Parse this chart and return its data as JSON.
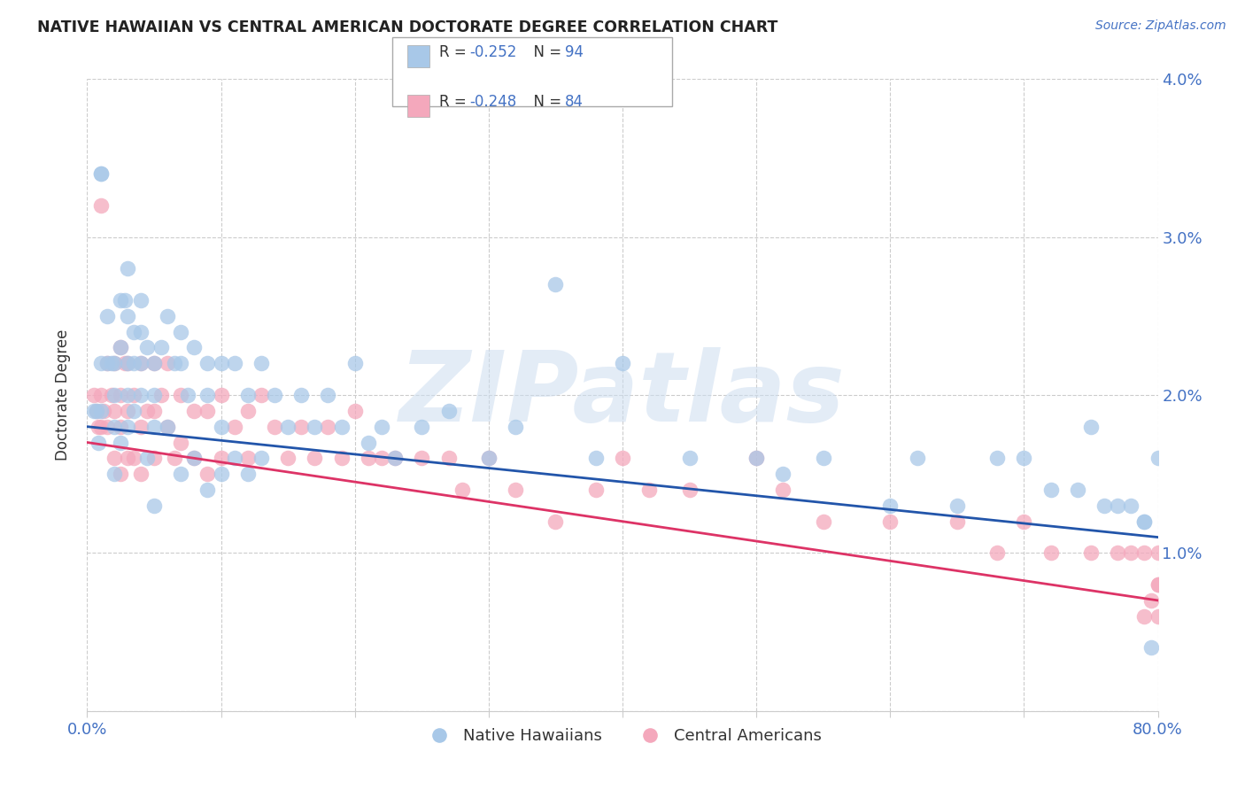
{
  "title": "NATIVE HAWAIIAN VS CENTRAL AMERICAN DOCTORATE DEGREE CORRELATION CHART",
  "source": "Source: ZipAtlas.com",
  "ylabel": "Doctorate Degree",
  "xlabel": "",
  "xlim": [
    0.0,
    0.8
  ],
  "ylim": [
    0.0,
    0.04
  ],
  "xticks": [
    0.0,
    0.1,
    0.2,
    0.3,
    0.4,
    0.5,
    0.6,
    0.7,
    0.8
  ],
  "xticklabels": [
    "0.0%",
    "",
    "",
    "",
    "",
    "",
    "",
    "",
    "80.0%"
  ],
  "yticks": [
    0.0,
    0.01,
    0.02,
    0.03,
    0.04
  ],
  "yticklabels": [
    "",
    "1.0%",
    "2.0%",
    "3.0%",
    "4.0%"
  ],
  "right_ytick_color": "#4472c4",
  "legend_blue_label_prefix": "R = ",
  "legend_blue_r_val": "-0.252",
  "legend_blue_n_label": "   N = ",
  "legend_blue_n_val": "94",
  "legend_pink_label_prefix": "R = ",
  "legend_pink_r_val": "-0.248",
  "legend_pink_n_label": "   N = ",
  "legend_pink_n_val": "84",
  "legend_sublabel_blue": "Native Hawaiians",
  "legend_sublabel_pink": "Central Americans",
  "blue_color": "#a8c8e8",
  "pink_color": "#f4a8bc",
  "trend_blue": "#2255aa",
  "trend_pink": "#dd3366",
  "grid_color": "#cccccc",
  "background_color": "#ffffff",
  "watermark": "ZIPatlas",
  "blue_trend_start": 0.018,
  "blue_trend_end": 0.011,
  "pink_trend_start": 0.017,
  "pink_trend_end": 0.007,
  "blue_x": [
    0.005,
    0.007,
    0.008,
    0.01,
    0.01,
    0.01,
    0.01,
    0.015,
    0.015,
    0.018,
    0.02,
    0.02,
    0.02,
    0.02,
    0.025,
    0.025,
    0.025,
    0.028,
    0.03,
    0.03,
    0.03,
    0.03,
    0.03,
    0.035,
    0.035,
    0.035,
    0.04,
    0.04,
    0.04,
    0.04,
    0.045,
    0.045,
    0.05,
    0.05,
    0.05,
    0.05,
    0.055,
    0.06,
    0.06,
    0.065,
    0.07,
    0.07,
    0.07,
    0.075,
    0.08,
    0.08,
    0.09,
    0.09,
    0.09,
    0.1,
    0.1,
    0.1,
    0.11,
    0.11,
    0.12,
    0.12,
    0.13,
    0.13,
    0.14,
    0.15,
    0.16,
    0.17,
    0.18,
    0.19,
    0.2,
    0.21,
    0.22,
    0.23,
    0.25,
    0.27,
    0.3,
    0.32,
    0.35,
    0.38,
    0.4,
    0.45,
    0.5,
    0.52,
    0.55,
    0.6,
    0.62,
    0.65,
    0.68,
    0.7,
    0.72,
    0.74,
    0.75,
    0.76,
    0.77,
    0.78,
    0.79,
    0.79,
    0.795,
    0.8
  ],
  "blue_y": [
    0.019,
    0.019,
    0.017,
    0.034,
    0.034,
    0.022,
    0.019,
    0.025,
    0.022,
    0.022,
    0.022,
    0.02,
    0.018,
    0.015,
    0.026,
    0.023,
    0.017,
    0.026,
    0.028,
    0.025,
    0.022,
    0.02,
    0.018,
    0.024,
    0.022,
    0.019,
    0.026,
    0.024,
    0.022,
    0.02,
    0.023,
    0.016,
    0.022,
    0.02,
    0.018,
    0.013,
    0.023,
    0.025,
    0.018,
    0.022,
    0.024,
    0.022,
    0.015,
    0.02,
    0.023,
    0.016,
    0.022,
    0.02,
    0.014,
    0.022,
    0.018,
    0.015,
    0.022,
    0.016,
    0.02,
    0.015,
    0.022,
    0.016,
    0.02,
    0.018,
    0.02,
    0.018,
    0.02,
    0.018,
    0.022,
    0.017,
    0.018,
    0.016,
    0.018,
    0.019,
    0.016,
    0.018,
    0.027,
    0.016,
    0.022,
    0.016,
    0.016,
    0.015,
    0.016,
    0.013,
    0.016,
    0.013,
    0.016,
    0.016,
    0.014,
    0.014,
    0.018,
    0.013,
    0.013,
    0.013,
    0.012,
    0.012,
    0.004,
    0.016
  ],
  "pink_x": [
    0.005,
    0.007,
    0.008,
    0.01,
    0.01,
    0.01,
    0.012,
    0.015,
    0.015,
    0.018,
    0.02,
    0.02,
    0.02,
    0.025,
    0.025,
    0.025,
    0.025,
    0.028,
    0.03,
    0.03,
    0.03,
    0.035,
    0.035,
    0.04,
    0.04,
    0.04,
    0.045,
    0.05,
    0.05,
    0.05,
    0.055,
    0.06,
    0.06,
    0.065,
    0.07,
    0.07,
    0.08,
    0.08,
    0.09,
    0.09,
    0.1,
    0.1,
    0.11,
    0.12,
    0.12,
    0.13,
    0.14,
    0.15,
    0.16,
    0.17,
    0.18,
    0.19,
    0.2,
    0.21,
    0.22,
    0.23,
    0.25,
    0.27,
    0.28,
    0.3,
    0.32,
    0.35,
    0.38,
    0.4,
    0.42,
    0.45,
    0.5,
    0.52,
    0.55,
    0.6,
    0.65,
    0.68,
    0.7,
    0.72,
    0.75,
    0.77,
    0.78,
    0.79,
    0.79,
    0.795,
    0.8,
    0.8,
    0.8,
    0.8
  ],
  "pink_y": [
    0.02,
    0.019,
    0.018,
    0.032,
    0.02,
    0.018,
    0.019,
    0.022,
    0.018,
    0.02,
    0.022,
    0.019,
    0.016,
    0.023,
    0.02,
    0.018,
    0.015,
    0.022,
    0.022,
    0.019,
    0.016,
    0.02,
    0.016,
    0.022,
    0.018,
    0.015,
    0.019,
    0.022,
    0.019,
    0.016,
    0.02,
    0.022,
    0.018,
    0.016,
    0.02,
    0.017,
    0.019,
    0.016,
    0.019,
    0.015,
    0.02,
    0.016,
    0.018,
    0.019,
    0.016,
    0.02,
    0.018,
    0.016,
    0.018,
    0.016,
    0.018,
    0.016,
    0.019,
    0.016,
    0.016,
    0.016,
    0.016,
    0.016,
    0.014,
    0.016,
    0.014,
    0.012,
    0.014,
    0.016,
    0.014,
    0.014,
    0.016,
    0.014,
    0.012,
    0.012,
    0.012,
    0.01,
    0.012,
    0.01,
    0.01,
    0.01,
    0.01,
    0.01,
    0.006,
    0.007,
    0.01,
    0.008,
    0.008,
    0.006
  ]
}
